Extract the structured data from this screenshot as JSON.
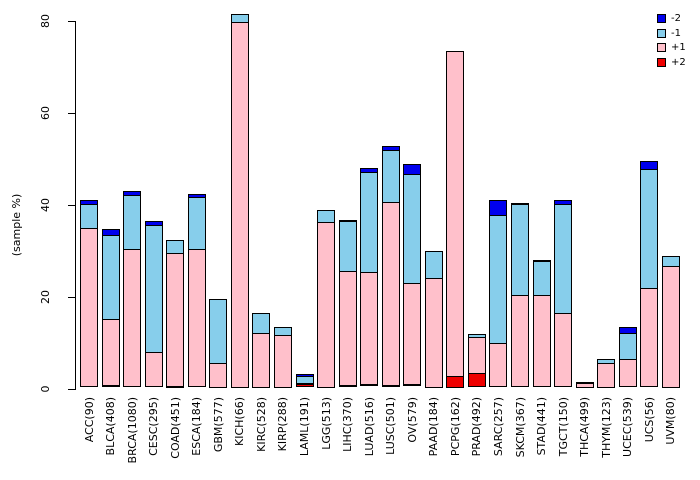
{
  "figure": {
    "background": "#ffffff",
    "title": ""
  },
  "y_axis": {
    "label": "(sample %)",
    "ticks": [
      0,
      20,
      40,
      60,
      80
    ]
  },
  "legend": {
    "position": "top-right",
    "items": [
      {
        "label": "-2",
        "color": "#0000EE"
      },
      {
        "label": "-1",
        "color": "#87CEEB"
      },
      {
        "label": "+1",
        "color": "#FFC0CB"
      },
      {
        "label": "+2",
        "color": "#EE0000"
      }
    ]
  },
  "chart_data": {
    "type": "bar",
    "subtype": "stacked-vertical",
    "title": "",
    "xlabel": "",
    "ylabel": "(sample %)",
    "ylim": [
      0,
      80
    ],
    "grid": false,
    "legend_position": "top-right",
    "stack_order_bottom_to_top": [
      "+2",
      "+1",
      "-1",
      "-2"
    ],
    "categories": [
      "ACC(90)",
      "BLCA(408)",
      "BRCA(1080)",
      "CESC(295)",
      "COAD(451)",
      "ESCA(184)",
      "GBM(577)",
      "KICH(66)",
      "KIRC(528)",
      "KIRP(288)",
      "LAML(191)",
      "LGG(513)",
      "LIHC(370)",
      "LUAD(516)",
      "LUSC(501)",
      "OV(579)",
      "PAAD(184)",
      "PCPG(162)",
      "PRAD(492)",
      "SARC(257)",
      "SKCM(367)",
      "STAD(441)",
      "TGCT(150)",
      "THCA(499)",
      "THYM(123)",
      "UCEC(539)",
      "UCS(56)",
      "UVM(80)"
    ],
    "series": [
      {
        "name": "-2",
        "color": "#0000EE",
        "values": [
          1,
          1.5,
          1,
          1,
          0,
          1,
          0,
          0,
          0,
          0,
          0.7,
          0,
          0.5,
          1,
          1,
          2.5,
          0,
          0,
          0,
          3.5,
          0.5,
          0.5,
          1,
          0,
          0,
          1.5,
          2,
          0
        ]
      },
      {
        "name": "-1",
        "color": "#87CEEB",
        "values": [
          5.5,
          18.5,
          12,
          28,
          3,
          11.5,
          14,
          2,
          4.5,
          2,
          1.8,
          3,
          11,
          22,
          11.5,
          24,
          6,
          0,
          1,
          28,
          20,
          7.5,
          24,
          0.5,
          1,
          6,
          26,
          2.5
        ]
      },
      {
        "name": "+1",
        "color": "#FFC0CB",
        "values": [
          34.5,
          14.5,
          30,
          7.5,
          29,
          30,
          5.5,
          79.5,
          12,
          11.5,
          0.3,
          36,
          25,
          24.5,
          40,
          22,
          24,
          71,
          8,
          9.5,
          20,
          20,
          16,
          1,
          5.5,
          6,
          21.5,
          26.5
        ]
      },
      {
        "name": "+2",
        "color": "#EE0000",
        "values": [
          0,
          0.3,
          0,
          0,
          0.3,
          0,
          0,
          0,
          0,
          0,
          0.5,
          0,
          0.3,
          0.5,
          0.3,
          0.5,
          0,
          2.5,
          3,
          0,
          0,
          0,
          0,
          0,
          0,
          0,
          0,
          0
        ]
      }
    ]
  }
}
